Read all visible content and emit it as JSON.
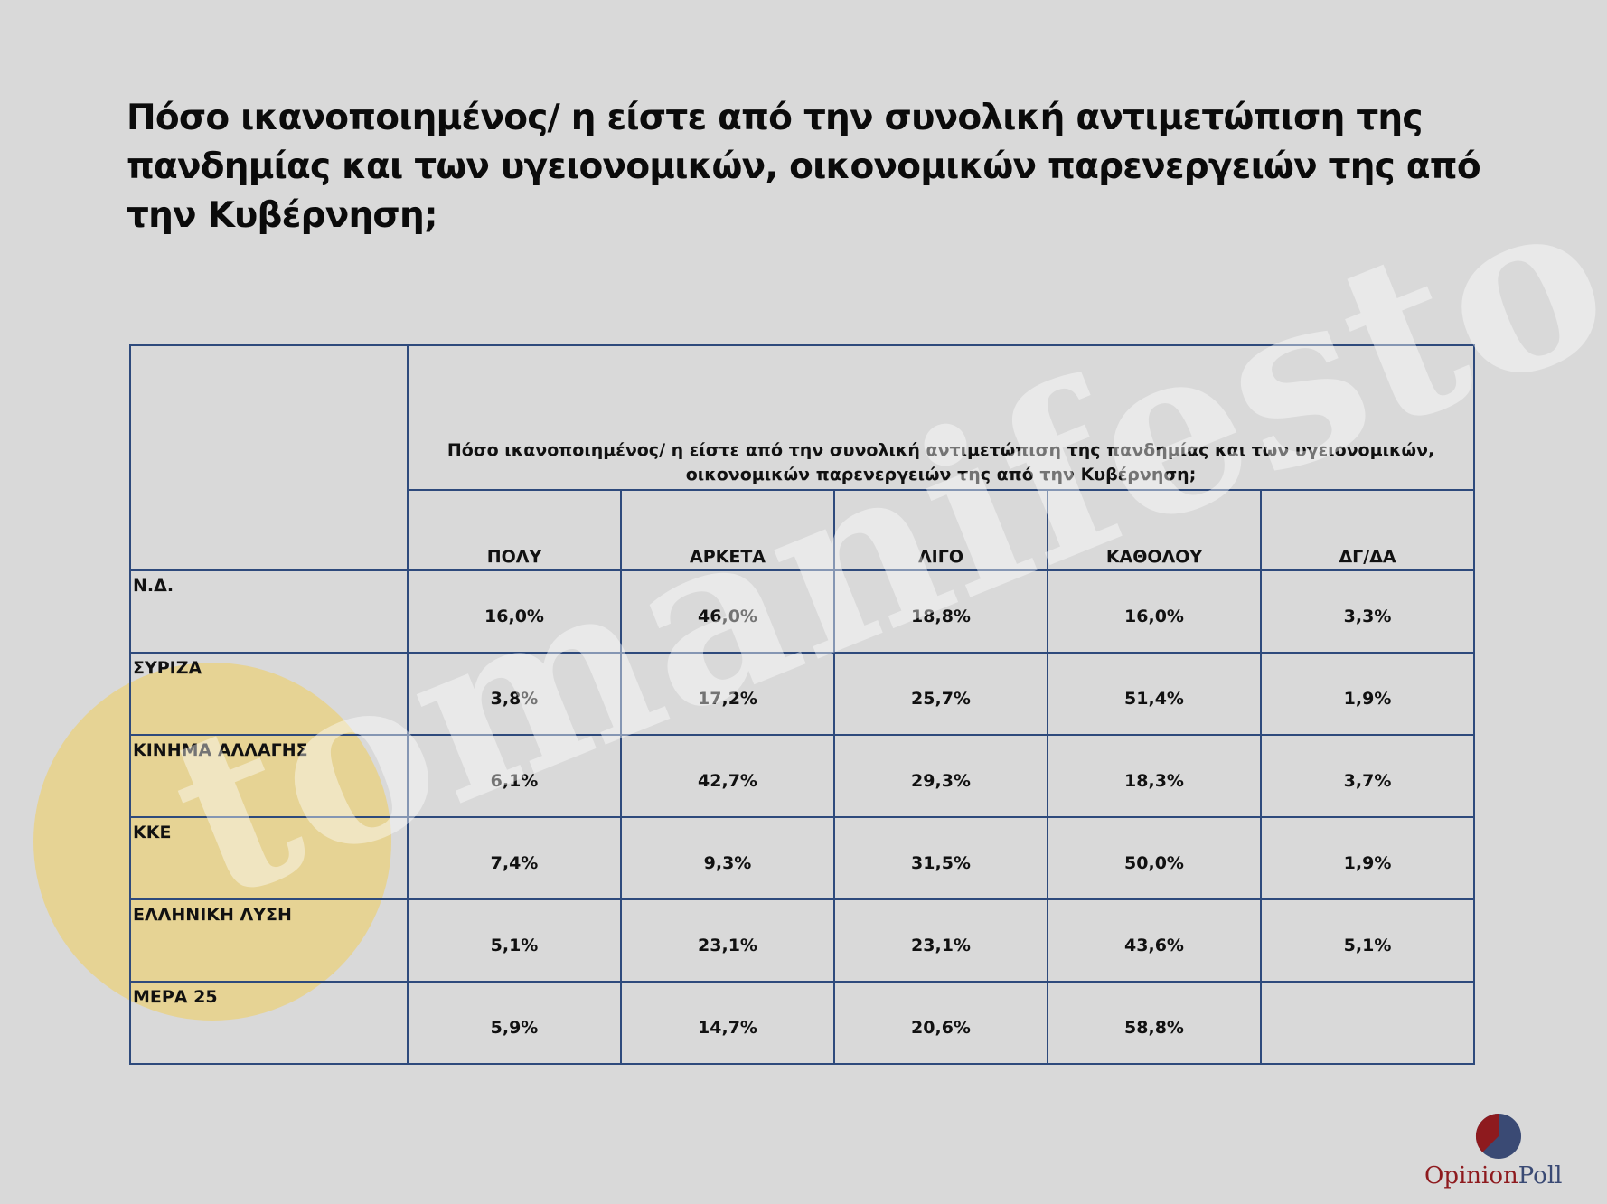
{
  "title": "Πόσο ικανοποιημένος/ η είστε από την συνολική αντιμετώπιση της πανδημίας και των υγειονομικών, οικονομικών παρενεργειών της από την Κυβέρνηση;",
  "table": {
    "question": "Πόσο ικανοποιημένος/ η είστε από την συνολική αντιμετώπιση της πανδημίας και των υγειονομικών, οικονομικών παρενεργειών της από την Κυβέρνηση;",
    "columns": [
      "ΠΟΛΥ",
      "ΑΡΚΕΤΑ",
      "ΛΙΓΟ",
      "ΚΑΘΟΛΟΥ",
      "ΔΓ/ΔΑ"
    ],
    "rows": [
      {
        "party": "Ν.Δ.",
        "values": [
          "16,0%",
          "46,0%",
          "18,8%",
          "16,0%",
          "3,3%"
        ]
      },
      {
        "party": "ΣΥΡΙΖΑ",
        "values": [
          "3,8%",
          "17,2%",
          "25,7%",
          "51,4%",
          "1,9%"
        ]
      },
      {
        "party": "ΚΙΝΗΜΑ ΑΛΛΑΓΗΣ",
        "values": [
          "6,1%",
          "42,7%",
          "29,3%",
          "18,3%",
          "3,7%"
        ]
      },
      {
        "party": "ΚΚΕ",
        "values": [
          "7,4%",
          "9,3%",
          "31,5%",
          "50,0%",
          "1,9%"
        ]
      },
      {
        "party": "ΕΛΛΗΝΙΚΗ ΛΥΣΗ",
        "values": [
          "5,1%",
          "23,1%",
          "23,1%",
          "43,6%",
          "5,1%"
        ]
      },
      {
        "party": "ΜΕΡΑ 25",
        "values": [
          "5,9%",
          "14,7%",
          "20,6%",
          "58,8%",
          ""
        ]
      }
    ]
  },
  "watermark": {
    "text": "tomanifesto"
  },
  "logo": {
    "brand_first": "Opinion",
    "brand_second": "Poll",
    "icon": "pie-chart-icon"
  },
  "colors": {
    "background": "#d9d9d9",
    "table_border": "#2e4a7c",
    "watermark_circle": "#e6d394",
    "logo_red": "#8e1a1e",
    "logo_navy": "#3a4a74"
  }
}
